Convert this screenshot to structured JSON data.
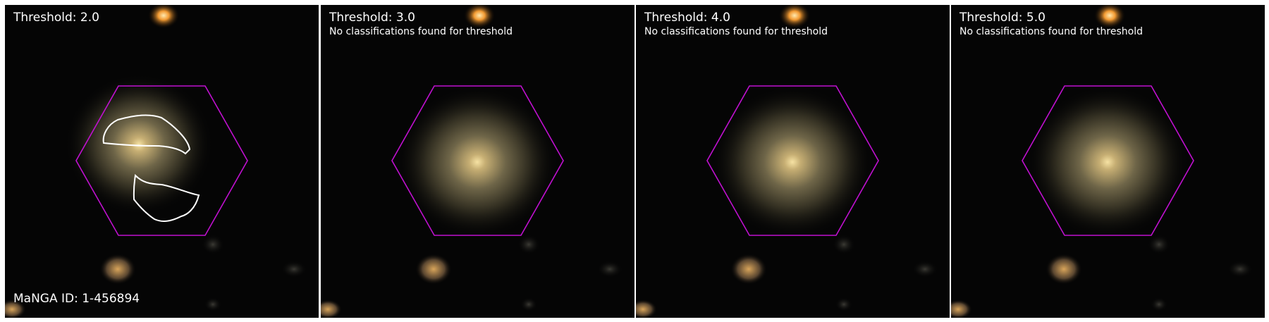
{
  "panels": [
    {
      "title": "Threshold: 2.0",
      "subtitle": "",
      "footer": "MaNGA ID: 1-456894",
      "has_contours": true
    },
    {
      "title": "Threshold: 3.0",
      "subtitle": "No classifications found for threshold",
      "footer": "",
      "has_contours": false
    },
    {
      "title": "Threshold: 4.0",
      "subtitle": "No classifications found for threshold",
      "footer": "",
      "has_contours": false
    },
    {
      "title": "Threshold: 5.0",
      "subtitle": "No classifications found for threshold",
      "footer": "",
      "has_contours": false
    }
  ],
  "colors": {
    "background": "#050505",
    "hexagon": "#c010d0",
    "contour": "#ffffff",
    "galaxy_core": "#f3dc9a",
    "galaxy_halo": "#6e6548",
    "star_orange": "#f29a32"
  }
}
